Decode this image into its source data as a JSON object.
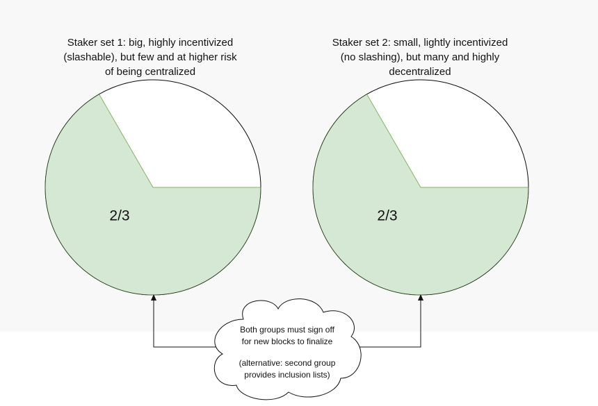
{
  "set1": {
    "title": [
      "Staker set 1: big, highly incentivized",
      "(slashable), but few and at higher risk",
      "of being centralized"
    ],
    "label": "2/3"
  },
  "set2": {
    "title": [
      "Staker set 2: small, lightly incentivized",
      "(no slashing), but many and highly",
      "decentralized"
    ],
    "label": "2/3"
  },
  "cloud": {
    "lines": [
      "Both groups must sign off",
      "for new blocks to finalize",
      "(alternative: second group",
      "provides inclusion lists)"
    ]
  }
}
